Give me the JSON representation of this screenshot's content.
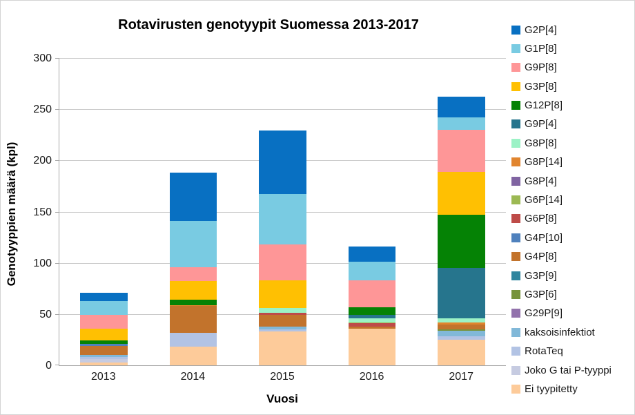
{
  "title": "Rotavirusten genotyypit Suomessa 2013-2017",
  "x_axis": {
    "label": "Vuosi"
  },
  "y_axis": {
    "label": "Genotyyppien määrä (kpl)"
  },
  "chart_data": {
    "type": "bar",
    "stacked": true,
    "title": "Rotavirusten genotyypit Suomessa 2013-2017",
    "xlabel": "Vuosi",
    "ylabel": "Genotyyppien määrä (kpl)",
    "categories": [
      "2013",
      "2014",
      "2015",
      "2016",
      "2017"
    ],
    "ylim": [
      0,
      300
    ],
    "yticks": [
      0,
      50,
      100,
      150,
      200,
      250,
      300
    ],
    "grid": true,
    "legend_position": "right",
    "series": [
      {
        "name": "G2P[4]",
        "color": "#0870C2",
        "values": [
          8,
          47,
          62,
          15,
          20
        ]
      },
      {
        "name": "G1P[8]",
        "color": "#79CBE2",
        "values": [
          14,
          45,
          49,
          18,
          12
        ]
      },
      {
        "name": "G9P[8]",
        "color": "#FE9697",
        "values": [
          13,
          14,
          35,
          26,
          41
        ]
      },
      {
        "name": "G3P[8]",
        "color": "#FFC002",
        "values": [
          12,
          18,
          27,
          0,
          42
        ]
      },
      {
        "name": "G12P[8]",
        "color": "#058205",
        "values": [
          3,
          5,
          0,
          8,
          52
        ]
      },
      {
        "name": "G9P[4]",
        "color": "#26758D",
        "values": [
          0,
          0,
          0,
          3,
          49
        ]
      },
      {
        "name": "G8P[8]",
        "color": "#9CF2C6",
        "values": [
          0,
          0,
          5,
          4,
          4
        ]
      },
      {
        "name": "G8P[14]",
        "color": "#E1852E",
        "values": [
          0,
          1,
          0,
          0,
          2
        ]
      },
      {
        "name": "G8P[4]",
        "color": "#8064A2",
        "values": [
          0,
          0,
          0,
          0,
          0
        ]
      },
      {
        "name": "G6P[14]",
        "color": "#9CB953",
        "values": [
          0,
          0,
          0,
          1,
          0
        ]
      },
      {
        "name": "G6P[8]",
        "color": "#BE4B48",
        "values": [
          0,
          0,
          2,
          3,
          0
        ]
      },
      {
        "name": "G4P[10]",
        "color": "#4F81BD",
        "values": [
          2,
          0,
          0,
          0,
          0
        ]
      },
      {
        "name": "G4P[8]",
        "color": "#C2732C",
        "values": [
          9,
          26,
          11,
          2,
          5
        ]
      },
      {
        "name": "G3P[9]",
        "color": "#2F859E",
        "values": [
          0,
          0,
          0,
          0,
          0
        ]
      },
      {
        "name": "G3P[6]",
        "color": "#77933C",
        "values": [
          0,
          0,
          0,
          0,
          1
        ]
      },
      {
        "name": "G29P[9]",
        "color": "#9272AC",
        "values": [
          0,
          0,
          0,
          0,
          0
        ]
      },
      {
        "name": "kaksoisinfektiot",
        "color": "#81B8D8",
        "values": [
          2,
          0,
          3,
          0,
          6
        ]
      },
      {
        "name": "RotaTeq",
        "color": "#B2C3E4",
        "values": [
          2,
          14,
          2,
          0,
          3
        ]
      },
      {
        "name": "Joko G tai P-tyyppi",
        "color": "#C6CBE1",
        "values": [
          3,
          0,
          0,
          0,
          0
        ]
      },
      {
        "name": "Ei tyypitetty",
        "color": "#FDCB9A",
        "values": [
          3,
          18,
          33,
          36,
          25
        ]
      }
    ]
  }
}
